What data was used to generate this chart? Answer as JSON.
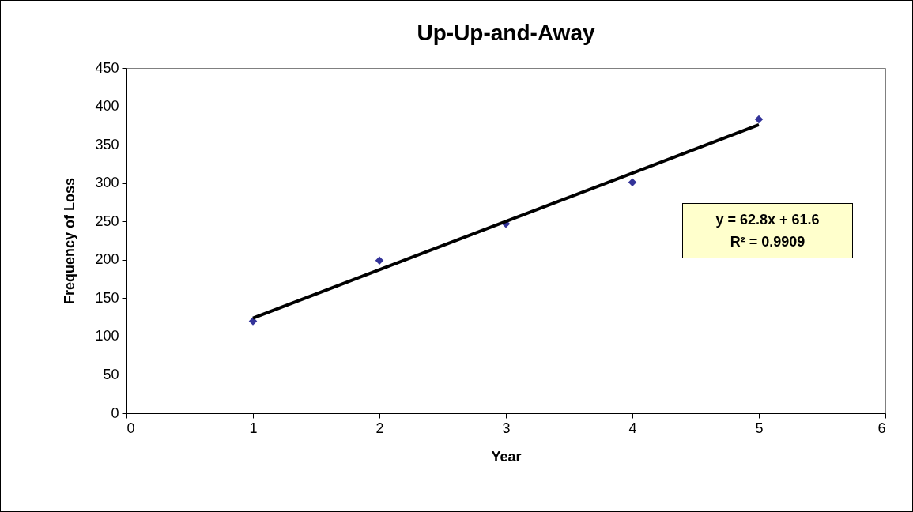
{
  "chart_data": {
    "type": "scatter",
    "title": "Up-Up-and-Away",
    "xlabel": "Year",
    "ylabel": "Frequency of Loss",
    "x": [
      1,
      2,
      3,
      4,
      5
    ],
    "series": [
      {
        "color": "#333399",
        "values": [
          120,
          199,
          247,
          301,
          383
        ],
        "marker": "diamond"
      },
      {
        "type": "line",
        "x": [
          1,
          5
        ],
        "color": "#000000",
        "values": [
          124,
          376
        ],
        "line_style": "solid"
      }
    ],
    "xlim": [
      0,
      6
    ],
    "xticks": [
      0,
      1,
      2,
      3,
      4,
      5,
      6
    ],
    "ylim": [
      0,
      450
    ],
    "yticks": [
      0,
      50,
      100,
      150,
      200,
      250,
      300,
      350,
      400,
      450
    ],
    "annotations": [
      "y = 62.8x + 61.6",
      "R² = 0.9909"
    ]
  }
}
